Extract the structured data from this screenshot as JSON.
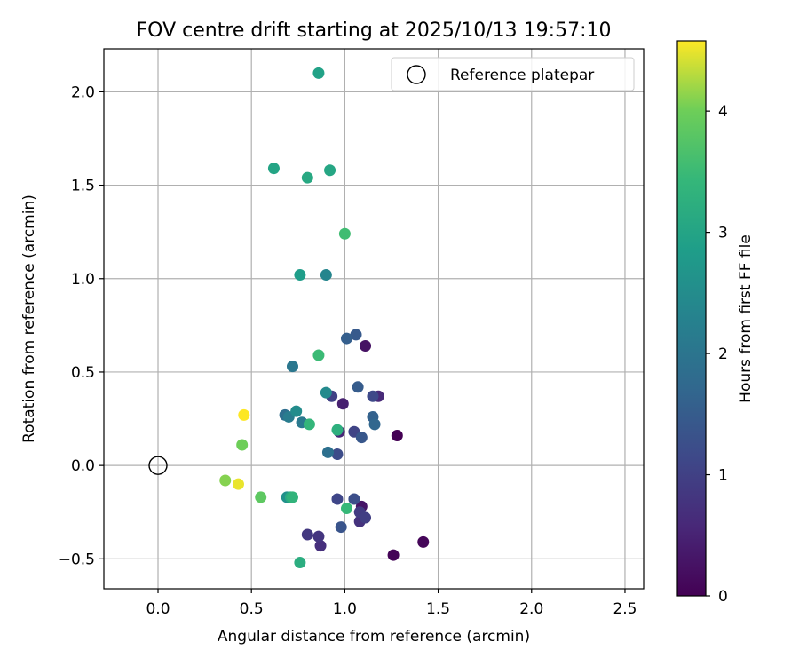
{
  "chart_data": {
    "type": "scatter",
    "title": "FOV centre drift starting at 2025/10/13 19:57:10",
    "xlabel": "Angular distance from reference (arcmin)",
    "ylabel": "Rotation from reference (arcmin)",
    "xlim": [
      -0.29,
      2.6
    ],
    "ylim": [
      -0.66,
      2.23
    ],
    "x_ticks": [
      0.0,
      0.5,
      1.0,
      1.5,
      2.0,
      2.5
    ],
    "x_tick_labels": [
      "0.0",
      "0.5",
      "1.0",
      "1.5",
      "2.0",
      "2.5"
    ],
    "y_ticks": [
      -0.5,
      0.0,
      0.5,
      1.0,
      1.5,
      2.0
    ],
    "y_tick_labels": [
      "−0.5",
      "0.0",
      "0.5",
      "1.0",
      "1.5",
      "2.0"
    ],
    "grid": true,
    "legend": {
      "position": "top-right",
      "entries": [
        "Reference platepar"
      ]
    },
    "reference_point": {
      "x": 0.0,
      "y": 0.0,
      "label": "Reference platepar"
    },
    "colorbar": {
      "label": "Hours from first FF file",
      "range": [
        0,
        4.58
      ],
      "colormap": "viridis",
      "ticks": [
        0,
        1,
        2,
        3,
        4
      ],
      "tick_labels": [
        "0",
        "1",
        "2",
        "3",
        "4"
      ]
    },
    "points": [
      {
        "x": 1.28,
        "y": 0.16,
        "t": 0.0
      },
      {
        "x": 1.26,
        "y": -0.48,
        "t": 0.05
      },
      {
        "x": 1.42,
        "y": -0.41,
        "t": 0.08
      },
      {
        "x": 1.11,
        "y": 0.64,
        "t": 0.25
      },
      {
        "x": 1.09,
        "y": -0.22,
        "t": 0.3
      },
      {
        "x": 0.99,
        "y": 0.33,
        "t": 0.45
      },
      {
        "x": 0.97,
        "y": 0.18,
        "t": 0.55
      },
      {
        "x": 1.18,
        "y": 0.37,
        "t": 0.6
      },
      {
        "x": 0.87,
        "y": -0.43,
        "t": 0.7
      },
      {
        "x": 1.08,
        "y": -0.3,
        "t": 0.75
      },
      {
        "x": 0.86,
        "y": -0.38,
        "t": 0.8
      },
      {
        "x": 0.8,
        "y": -0.37,
        "t": 0.85
      },
      {
        "x": 1.08,
        "y": -0.25,
        "t": 0.9
      },
      {
        "x": 1.11,
        "y": -0.28,
        "t": 0.95
      },
      {
        "x": 0.93,
        "y": 0.37,
        "t": 1.0
      },
      {
        "x": 1.05,
        "y": 0.18,
        "t": 1.05
      },
      {
        "x": 0.96,
        "y": -0.18,
        "t": 1.1
      },
      {
        "x": 1.15,
        "y": 0.37,
        "t": 1.15
      },
      {
        "x": 0.96,
        "y": 0.06,
        "t": 1.2
      },
      {
        "x": 1.05,
        "y": -0.18,
        "t": 1.25
      },
      {
        "x": 0.98,
        "y": -0.33,
        "t": 1.35
      },
      {
        "x": 1.09,
        "y": 0.15,
        "t": 1.4
      },
      {
        "x": 1.06,
        "y": 0.7,
        "t": 1.45
      },
      {
        "x": 1.07,
        "y": 0.42,
        "t": 1.5
      },
      {
        "x": 1.01,
        "y": 0.68,
        "t": 1.55
      },
      {
        "x": 1.15,
        "y": 0.26,
        "t": 1.6
      },
      {
        "x": 1.16,
        "y": 0.22,
        "t": 1.7
      },
      {
        "x": 0.68,
        "y": 0.27,
        "t": 1.85
      },
      {
        "x": 0.91,
        "y": 0.07,
        "t": 1.9
      },
      {
        "x": 0.72,
        "y": 0.53,
        "t": 2.05
      },
      {
        "x": 0.77,
        "y": 0.23,
        "t": 2.1
      },
      {
        "x": 0.7,
        "y": 0.26,
        "t": 2.15
      },
      {
        "x": 0.9,
        "y": 1.02,
        "t": 2.35
      },
      {
        "x": 0.9,
        "y": 0.39,
        "t": 2.45
      },
      {
        "x": 0.74,
        "y": 0.29,
        "t": 2.5
      },
      {
        "x": 0.69,
        "y": -0.17,
        "t": 2.6
      },
      {
        "x": 0.76,
        "y": 1.02,
        "t": 2.85
      },
      {
        "x": 0.86,
        "y": 2.1,
        "t": 2.95
      },
      {
        "x": 0.62,
        "y": 1.59,
        "t": 3.0
      },
      {
        "x": 0.92,
        "y": 1.58,
        "t": 3.05
      },
      {
        "x": 0.8,
        "y": 1.54,
        "t": 3.1
      },
      {
        "x": 0.71,
        "y": -0.17,
        "t": 3.15
      },
      {
        "x": 0.76,
        "y": -0.52,
        "t": 3.2
      },
      {
        "x": 0.96,
        "y": 0.19,
        "t": 3.25
      },
      {
        "x": 0.72,
        "y": -0.17,
        "t": 3.35
      },
      {
        "x": 0.81,
        "y": 0.22,
        "t": 3.4
      },
      {
        "x": 1.01,
        "y": -0.23,
        "t": 3.45
      },
      {
        "x": 0.86,
        "y": 0.59,
        "t": 3.5
      },
      {
        "x": 1.0,
        "y": 1.24,
        "t": 3.55
      },
      {
        "x": 0.55,
        "y": -0.17,
        "t": 3.85
      },
      {
        "x": 0.45,
        "y": 0.11,
        "t": 4.0
      },
      {
        "x": 0.36,
        "y": -0.08,
        "t": 4.1
      },
      {
        "x": 0.43,
        "y": -0.1,
        "t": 4.5
      },
      {
        "x": 0.46,
        "y": 0.27,
        "t": 4.58
      }
    ]
  }
}
